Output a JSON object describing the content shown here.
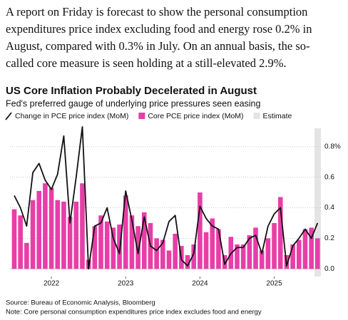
{
  "article": {
    "lines": [
      "A report on Friday is forecast to show the personal consumption",
      "expenditures price index excluding food and energy rose 0.2% in",
      "August, compared with 0.3% in July. On an annual basis, the so-",
      "called core measure is seen holding at a still-elevated 2.9%."
    ]
  },
  "chart_data": {
    "type": "bar_line",
    "title": "US Core Inflation Probably Decelerated in August",
    "subtitle": "Fed's preferred gauge of underlying price pressures seen easing",
    "categories": [
      null,
      null,
      null,
      null,
      null,
      null,
      "2022",
      null,
      null,
      null,
      null,
      null,
      null,
      null,
      null,
      null,
      null,
      null,
      "2023",
      null,
      null,
      null,
      null,
      null,
      null,
      null,
      null,
      null,
      null,
      null,
      "2024",
      null,
      null,
      null,
      null,
      null,
      null,
      null,
      null,
      null,
      null,
      null,
      "2025",
      null,
      null,
      null,
      null,
      null,
      null,
      null
    ],
    "series": [
      {
        "name": "Change in PCE price index (MoM)",
        "type": "line",
        "color": "#111111",
        "values": [
          0.48,
          0.4,
          0.28,
          0.63,
          0.69,
          0.58,
          0.52,
          0.62,
          0.87,
          0.3,
          0.6,
          0.93,
          0.0,
          0.28,
          0.3,
          0.4,
          0.2,
          0.1,
          0.51,
          0.32,
          0.1,
          0.34,
          0.15,
          0.12,
          0.17,
          0.31,
          0.35,
          0.06,
          0.02,
          0.1,
          0.41,
          0.33,
          0.28,
          0.26,
          0.03,
          0.1,
          0.14,
          0.14,
          0.2,
          0.22,
          0.1,
          0.28,
          0.36,
          0.4,
          0.02,
          0.15,
          0.2,
          0.26,
          0.2,
          0.3
        ]
      },
      {
        "name": "Core PCE price index (MoM)",
        "type": "bar",
        "color": "#e83ea8",
        "values": [
          0.39,
          0.35,
          0.17,
          0.45,
          0.51,
          0.56,
          0.53,
          0.45,
          0.44,
          0.34,
          0.44,
          0.56,
          0.06,
          0.28,
          0.35,
          0.31,
          0.27,
          0.29,
          0.48,
          0.35,
          0.28,
          0.37,
          0.3,
          0.2,
          0.19,
          0.12,
          0.23,
          0.15,
          0.09,
          0.16,
          0.5,
          0.24,
          0.33,
          0.26,
          0.09,
          0.21,
          0.16,
          0.16,
          0.22,
          0.27,
          0.12,
          0.2,
          0.3,
          0.47,
          0.09,
          0.16,
          0.19,
          0.26,
          0.27,
          0.2
        ]
      }
    ],
    "estimate": {
      "name": "Estimate",
      "color": "#e4e4e4",
      "from_index": 49
    },
    "ylim": [
      -0.05,
      0.92
    ],
    "yticks": [
      {
        "value": 0,
        "label": "0.0"
      },
      0.2,
      0.4,
      0.6,
      {
        "value": 0.8,
        "label": "0.8%"
      }
    ],
    "grid": true,
    "source": "Source: Bureau of Economic Analysis, Bloomberg",
    "note": "Note: Core personal consumption expenditures price index excludes food and energy"
  }
}
